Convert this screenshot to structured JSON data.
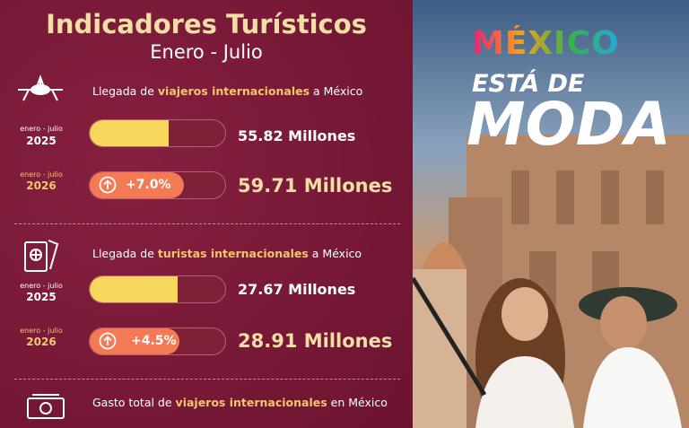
{
  "header": {
    "title": "Indicadores Turísticos",
    "subtitle": "Enero - Julio"
  },
  "sections": [
    {
      "label": [
        "Llegada de ",
        "viajeros internacionales",
        " a México"
      ],
      "rows": [
        {
          "period": "enero - julio",
          "year": "2025",
          "value": "55.82 Millones"
        },
        {
          "period": "enero - julio",
          "year": "2026",
          "change": "+7.0%",
          "value": "59.71 Millones"
        }
      ]
    },
    {
      "label": [
        "Llegada de ",
        "turistas internacionales",
        " a México"
      ],
      "rows": [
        {
          "period": "enero - julio",
          "year": "2025",
          "value": "27.67 Millones"
        },
        {
          "period": "enero - julio",
          "year": "2026",
          "change": "+4.5%",
          "value": "28.91 Millones"
        }
      ]
    },
    {
      "label": [
        "Gasto total de ",
        "viajeros internacionales",
        " en México"
      ],
      "rows": []
    }
  ],
  "photo": {
    "brand": "MÉXICO",
    "tagline": "ESTÁ DE",
    "headline": "MODA"
  }
}
